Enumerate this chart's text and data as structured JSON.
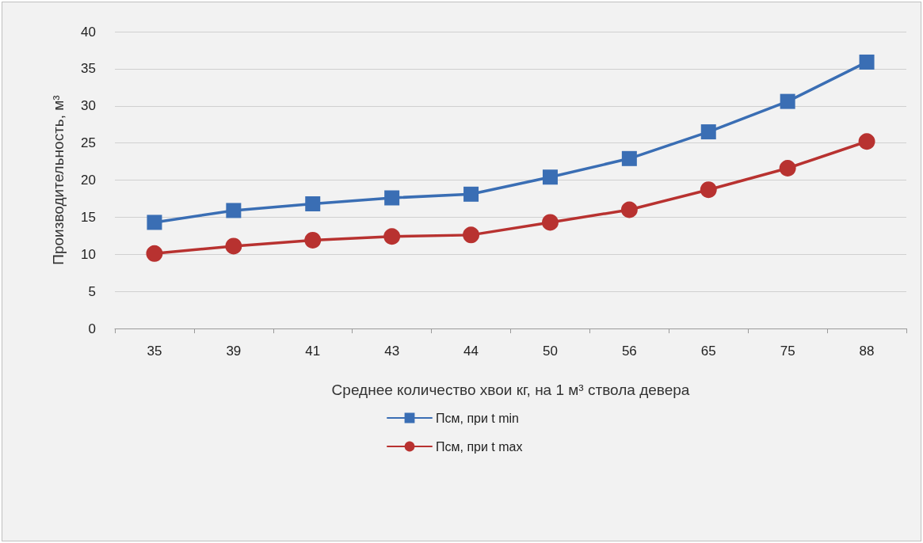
{
  "chart_data": {
    "type": "line",
    "xlabel": "Среднее количество хвои кг, на 1 м³ ствола девера",
    "ylabel": "Производительность, м³",
    "categories": [
      "35",
      "39",
      "41",
      "43",
      "44",
      "50",
      "56",
      "65",
      "75",
      "88"
    ],
    "series": [
      {
        "name": "Псм, при t min",
        "color": "#3a6eb4",
        "marker": "square",
        "values": [
          14.3,
          15.9,
          16.8,
          17.6,
          18.1,
          20.4,
          22.9,
          26.5,
          30.6,
          35.9
        ]
      },
      {
        "name": "Псм, при t max",
        "color": "#b83230",
        "marker": "circle",
        "values": [
          10.1,
          11.1,
          11.9,
          12.4,
          12.6,
          14.3,
          16.0,
          18.7,
          21.6,
          25.2
        ]
      }
    ],
    "ylim": [
      0,
      40
    ],
    "yticks": [
      0,
      5,
      10,
      15,
      20,
      25,
      30,
      35,
      40
    ],
    "grid": "y",
    "legend": "bottom",
    "line_style": "solid"
  }
}
